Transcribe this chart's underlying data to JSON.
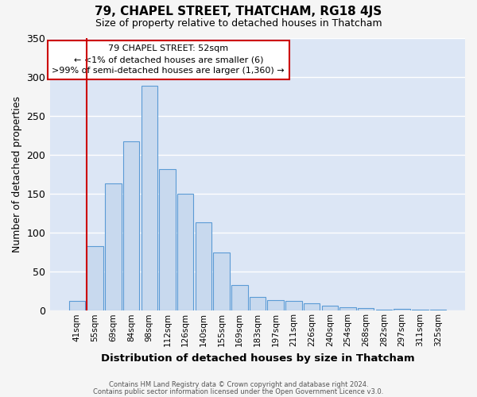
{
  "title": "79, CHAPEL STREET, THATCHAM, RG18 4JS",
  "subtitle": "Size of property relative to detached houses in Thatcham",
  "xlabel": "Distribution of detached houses by size in Thatcham",
  "ylabel": "Number of detached properties",
  "bar_labels": [
    "41sqm",
    "55sqm",
    "69sqm",
    "84sqm",
    "98sqm",
    "112sqm",
    "126sqm",
    "140sqm",
    "155sqm",
    "169sqm",
    "183sqm",
    "197sqm",
    "211sqm",
    "226sqm",
    "240sqm",
    "254sqm",
    "268sqm",
    "282sqm",
    "297sqm",
    "311sqm",
    "325sqm"
  ],
  "bar_values": [
    12,
    83,
    163,
    217,
    288,
    181,
    150,
    113,
    75,
    33,
    18,
    14,
    12,
    9,
    6,
    4,
    3,
    1,
    2,
    1,
    1
  ],
  "bar_color": "#c8d9ee",
  "bar_edge_color": "#5b9bd5",
  "annotation_line1": "79 CHAPEL STREET: 52sqm",
  "annotation_line2": "← <1% of detached houses are smaller (6)",
  "annotation_line3": ">99% of semi-detached houses are larger (1,360) →",
  "annotation_box_facecolor": "#ffffff",
  "annotation_box_edgecolor": "#cc0000",
  "property_line_color": "#cc0000",
  "ylim": [
    0,
    350
  ],
  "yticks": [
    0,
    50,
    100,
    150,
    200,
    250,
    300,
    350
  ],
  "plot_bg_color": "#dce6f5",
  "fig_bg_color": "#f5f5f5",
  "grid_color": "#ffffff",
  "footer_line1": "Contains HM Land Registry data © Crown copyright and database right 2024.",
  "footer_line2": "Contains public sector information licensed under the Open Government Licence v3.0."
}
